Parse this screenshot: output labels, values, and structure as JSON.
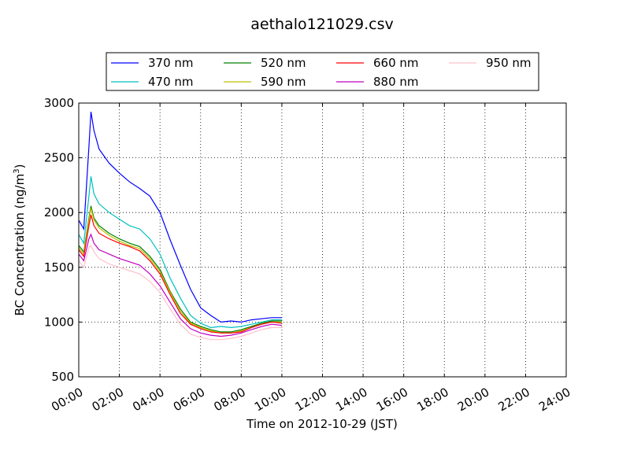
{
  "chart_data": {
    "type": "line",
    "title": "aethalo121029.csv",
    "xlabel": "Time on 2012-10-29 (JST)",
    "ylabel": "BC Concentration (ng/m",
    "ylabel_superscript": "3",
    "ylabel_suffix": ")",
    "xlim": [
      "00:00",
      "24:00"
    ],
    "ylim": [
      500,
      3000
    ],
    "grid": true,
    "legend_placement": "top-center",
    "x_ticks": [
      "00:00",
      "02:00",
      "04:00",
      "06:00",
      "08:00",
      "10:00",
      "12:00",
      "14:00",
      "16:00",
      "18:00",
      "20:00",
      "22:00",
      "24:00"
    ],
    "y_ticks": [
      "500",
      "1000",
      "1500",
      "2000",
      "2500",
      "3000"
    ],
    "x_hours": [
      0,
      0.25,
      0.5,
      0.6,
      0.75,
      1,
      1.5,
      2,
      2.5,
      3,
      3.5,
      4,
      4.5,
      5,
      5.5,
      6,
      6.5,
      7,
      7.5,
      8,
      8.5,
      9,
      9.5,
      10
    ],
    "series": [
      {
        "name": "370 nm",
        "color": "#0000ff",
        "values": [
          1930,
          1850,
          2600,
          2920,
          2750,
          2580,
          2450,
          2360,
          2280,
          2220,
          2150,
          2000,
          1750,
          1520,
          1300,
          1130,
          1060,
          1000,
          1010,
          1000,
          1020,
          1030,
          1040,
          1040
        ]
      },
      {
        "name": "470 nm",
        "color": "#00bfbf",
        "values": [
          1800,
          1720,
          2150,
          2330,
          2170,
          2080,
          2000,
          1940,
          1880,
          1850,
          1760,
          1620,
          1400,
          1220,
          1060,
          990,
          950,
          960,
          950,
          960,
          980,
          1000,
          1020,
          1020
        ]
      },
      {
        "name": "520 nm",
        "color": "#008000",
        "values": [
          1700,
          1640,
          1950,
          2060,
          1950,
          1880,
          1810,
          1760,
          1720,
          1690,
          1600,
          1480,
          1280,
          1120,
          1000,
          960,
          930,
          910,
          910,
          930,
          960,
          990,
          1010,
          1010
        ]
      },
      {
        "name": "590 nm",
        "color": "#bfbf00",
        "values": [
          1680,
          1620,
          1930,
          2040,
          1930,
          1860,
          1790,
          1740,
          1700,
          1670,
          1580,
          1460,
          1270,
          1100,
          990,
          950,
          920,
          900,
          900,
          920,
          950,
          980,
          1000,
          1000
        ]
      },
      {
        "name": "660 nm",
        "color": "#ff0000",
        "values": [
          1660,
          1600,
          1880,
          1980,
          1880,
          1810,
          1760,
          1720,
          1690,
          1650,
          1560,
          1440,
          1250,
          1080,
          980,
          940,
          910,
          900,
          900,
          910,
          950,
          980,
          1000,
          990
        ]
      },
      {
        "name": "880 nm",
        "color": "#bf00bf",
        "values": [
          1620,
          1560,
          1760,
          1800,
          1720,
          1660,
          1620,
          1580,
          1550,
          1520,
          1440,
          1330,
          1180,
          1030,
          940,
          900,
          880,
          870,
          880,
          900,
          930,
          960,
          980,
          970
        ]
      },
      {
        "name": "950 nm",
        "color": "#ffc0cb",
        "values": [
          1560,
          1500,
          1680,
          1700,
          1640,
          1580,
          1530,
          1500,
          1470,
          1440,
          1370,
          1270,
          1120,
          980,
          890,
          860,
          840,
          840,
          850,
          870,
          900,
          930,
          950,
          950
        ]
      }
    ]
  }
}
